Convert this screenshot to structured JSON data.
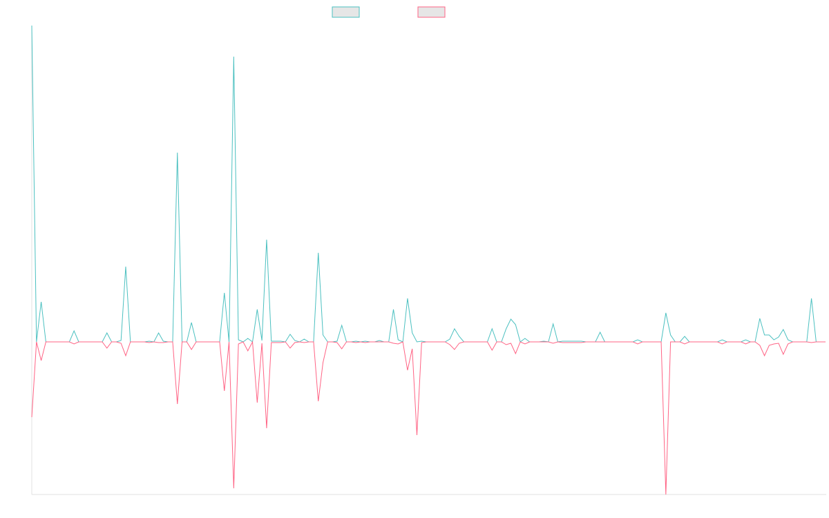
{
  "chart_data": {
    "type": "line",
    "ylim": [
      -2.21,
      4.58
    ],
    "series": [
      {
        "color": "#4bc0c0",
        "values": [
          4.58,
          0,
          0.58,
          0,
          0,
          0,
          0,
          0,
          0,
          0.16,
          0,
          0,
          0,
          0,
          0,
          0,
          0.13,
          0,
          0,
          0.02,
          1.09,
          0,
          0,
          0,
          0,
          0.01,
          0,
          0.13,
          0.01,
          0,
          0,
          2.74,
          0,
          0,
          0.28,
          0,
          0,
          0,
          0,
          0,
          0,
          0.71,
          0,
          4.13,
          0.03,
          0,
          0.05,
          0,
          0.47,
          0.02,
          1.48,
          0.01,
          0.01,
          0.01,
          0,
          0.11,
          0.02,
          0,
          0.04,
          0,
          0,
          1.29,
          0.1,
          0,
          0,
          0.01,
          0.24,
          0,
          0,
          0.01,
          0,
          0.01,
          0,
          0,
          0.02,
          0,
          0,
          0.47,
          0.03,
          0,
          0.63,
          0.13,
          0,
          0.01,
          0,
          0,
          0,
          0,
          0,
          0.04,
          0.19,
          0.08,
          0,
          0,
          0,
          0,
          0,
          0,
          0.19,
          0,
          0,
          0.19,
          0.33,
          0.25,
          0,
          0.05,
          0,
          0,
          0,
          0.01,
          0,
          0.26,
          0,
          0.01,
          0.01,
          0.01,
          0.01,
          0.01,
          0,
          0,
          0,
          0.14,
          0,
          0,
          0,
          0,
          0,
          0,
          0,
          0.03,
          0,
          0,
          0,
          0,
          0,
          0.42,
          0.1,
          0,
          0,
          0.08,
          0,
          0,
          0,
          0,
          0,
          0,
          0,
          0.03,
          0,
          0,
          0,
          0,
          0.03,
          0,
          0,
          0.34,
          0.1,
          0.1,
          0.03,
          0.07,
          0.18,
          0.03,
          0,
          0,
          0,
          0,
          0.63,
          0,
          0,
          0
        ]
      },
      {
        "color": "#ff6384",
        "values": [
          -1.09,
          0,
          -0.27,
          0,
          0,
          0,
          0,
          0,
          0,
          -0.03,
          0,
          0,
          0,
          0,
          0,
          0,
          -0.09,
          0,
          0,
          -0.02,
          -0.2,
          0,
          0,
          0,
          0,
          -0.01,
          0,
          -0.01,
          -0.01,
          0,
          0,
          -0.9,
          0,
          0,
          -0.11,
          0,
          0,
          0,
          0,
          0,
          0,
          -0.71,
          0,
          -2.12,
          -0.03,
          0,
          -0.13,
          0,
          -0.88,
          -0.02,
          -1.25,
          -0.01,
          -0.01,
          -0.01,
          0,
          -0.09,
          -0.01,
          0,
          -0.01,
          0,
          0,
          -0.86,
          -0.3,
          0,
          0,
          -0.01,
          -0.1,
          0,
          0,
          -0.01,
          0,
          -0.01,
          0,
          0,
          0,
          0,
          0,
          -0.02,
          -0.03,
          0,
          -0.41,
          -0.1,
          -1.35,
          -0.01,
          0,
          0,
          0,
          0,
          0,
          -0.04,
          -0.11,
          -0.02,
          0,
          0,
          0,
          0,
          0,
          0,
          -0.12,
          0,
          0,
          -0.04,
          -0.02,
          -0.17,
          0,
          -0.03,
          0,
          0,
          0,
          0,
          0,
          -0.02,
          0,
          -0.01,
          -0.01,
          -0.01,
          -0.01,
          -0.01,
          0,
          0,
          0,
          0,
          0,
          0,
          0,
          0,
          0,
          0,
          0,
          -0.03,
          0,
          0,
          0,
          0,
          0,
          -2.21,
          0,
          0,
          0,
          -0.03,
          0,
          0,
          0,
          0,
          0,
          0,
          0,
          -0.03,
          0,
          0,
          0,
          0,
          -0.03,
          0,
          0,
          -0.05,
          -0.2,
          -0.05,
          -0.03,
          -0.02,
          -0.18,
          -0.03,
          0,
          0,
          0,
          0,
          -0.01,
          0,
          0,
          0
        ]
      }
    ]
  }
}
